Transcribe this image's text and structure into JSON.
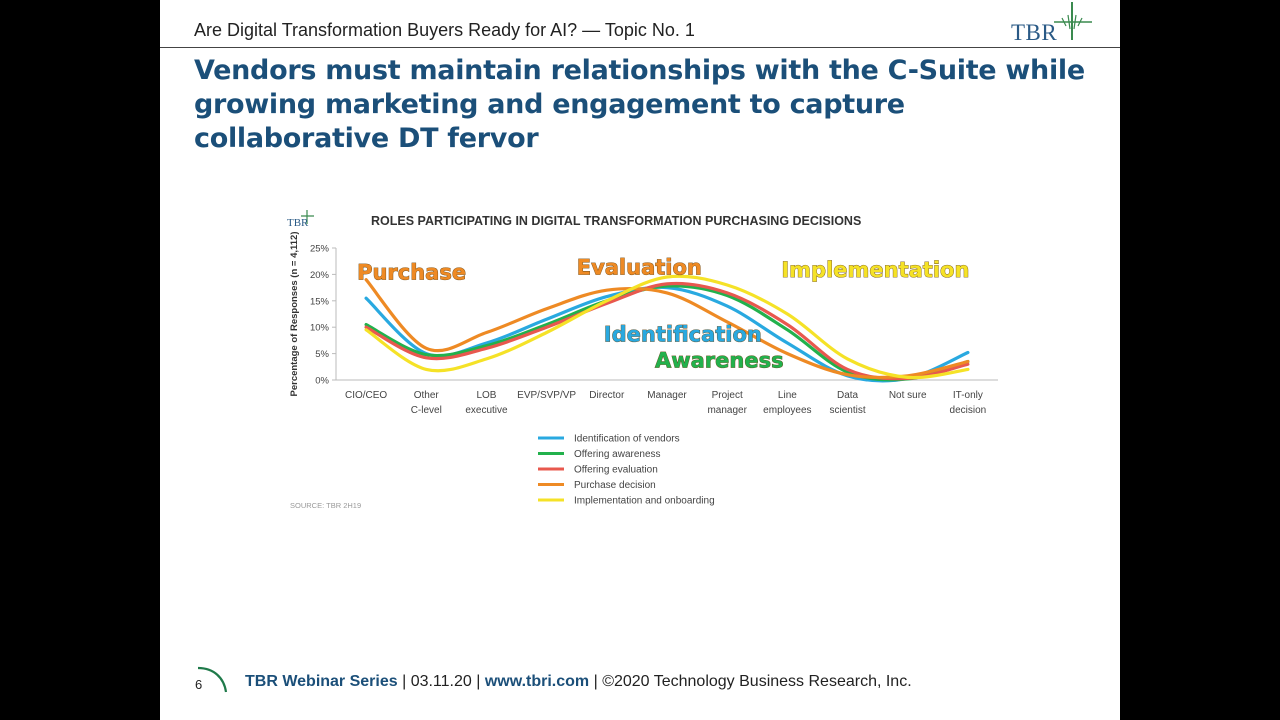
{
  "header": {
    "topic": "Are Digital Transformation Buyers Ready for AI? — Topic No. 1",
    "logo_text": "TBR",
    "headline": "Vendors must maintain relationships with the C-Suite while growing marketing and engagement to capture collaborative DT fervor"
  },
  "footer": {
    "page_number": "6",
    "series": "TBR Webinar Series",
    "sep1": " | ",
    "date": "03.11.20",
    "sep2": " | ",
    "url": "www.tbri.com",
    "sep3": " | ",
    "copyright": "©2020 Technology Business Research, Inc."
  },
  "chart_data": {
    "type": "line",
    "logo_text": "TBR",
    "title": "ROLES PARTICIPATING IN DIGITAL TRANSFORMATION PURCHASING DECISIONS",
    "ylabel": "Percentage of Responses (n = 4,112)",
    "xlabel": "",
    "ylim": [
      0,
      25
    ],
    "yticks": [
      "0%",
      "5%",
      "10%",
      "15%",
      "20%",
      "25%"
    ],
    "categories": [
      [
        "CIO/CEO"
      ],
      [
        "Other",
        "C-level"
      ],
      [
        "LOB",
        "executive"
      ],
      [
        "EVP/SVP/VP"
      ],
      [
        "Director"
      ],
      [
        "Manager"
      ],
      [
        "Project",
        "manager"
      ],
      [
        "Line",
        "employees"
      ],
      [
        "Data",
        "scientist"
      ],
      [
        "Not sure"
      ],
      [
        "IT-only",
        "decision"
      ]
    ],
    "grid": false,
    "legend_position": "bottom",
    "series": [
      {
        "name": "Identification of vendors",
        "color": "#29a9e0",
        "values": [
          15.5,
          5.0,
          7.0,
          11.5,
          15.8,
          17.5,
          14.0,
          7.0,
          0.8,
          0.3,
          5.2
        ]
      },
      {
        "name": "Offering awareness",
        "color": "#22b14c",
        "values": [
          10.5,
          4.8,
          6.5,
          10.5,
          15.0,
          17.8,
          16.0,
          9.5,
          1.5,
          0.2,
          3.5
        ]
      },
      {
        "name": "Offering evaluation",
        "color": "#e8584e",
        "values": [
          10.0,
          4.2,
          6.0,
          10.0,
          14.5,
          18.2,
          16.5,
          10.5,
          2.0,
          0.3,
          3.0
        ]
      },
      {
        "name": "Purchase decision",
        "color": "#ee8a24",
        "values": [
          19.0,
          6.0,
          9.0,
          13.5,
          17.0,
          16.5,
          11.0,
          5.0,
          1.0,
          0.8,
          3.5
        ]
      },
      {
        "name": "Implementation and onboarding",
        "color": "#f5e227",
        "values": [
          9.5,
          2.0,
          4.0,
          9.0,
          15.0,
          19.5,
          18.0,
          12.5,
          4.0,
          0.5,
          2.0
        ]
      }
    ],
    "annotations": [
      {
        "text": "Purchase",
        "color": "#ee8a24",
        "category": 0.35,
        "value": 19.0
      },
      {
        "text": "Evaluation",
        "color": "#ee8a24",
        "category": 4.0,
        "value": 20.0
      },
      {
        "text": "Implementation",
        "color": "#f5e227",
        "category": 7.4,
        "value": 19.5
      },
      {
        "text": "Identification",
        "color": "#29a9e0",
        "category": 4.45,
        "value": 7.3
      },
      {
        "text": "Awareness",
        "color": "#22b14c",
        "category": 5.3,
        "value": 2.4
      }
    ],
    "source": "SOURCE: TBR 2H19"
  }
}
